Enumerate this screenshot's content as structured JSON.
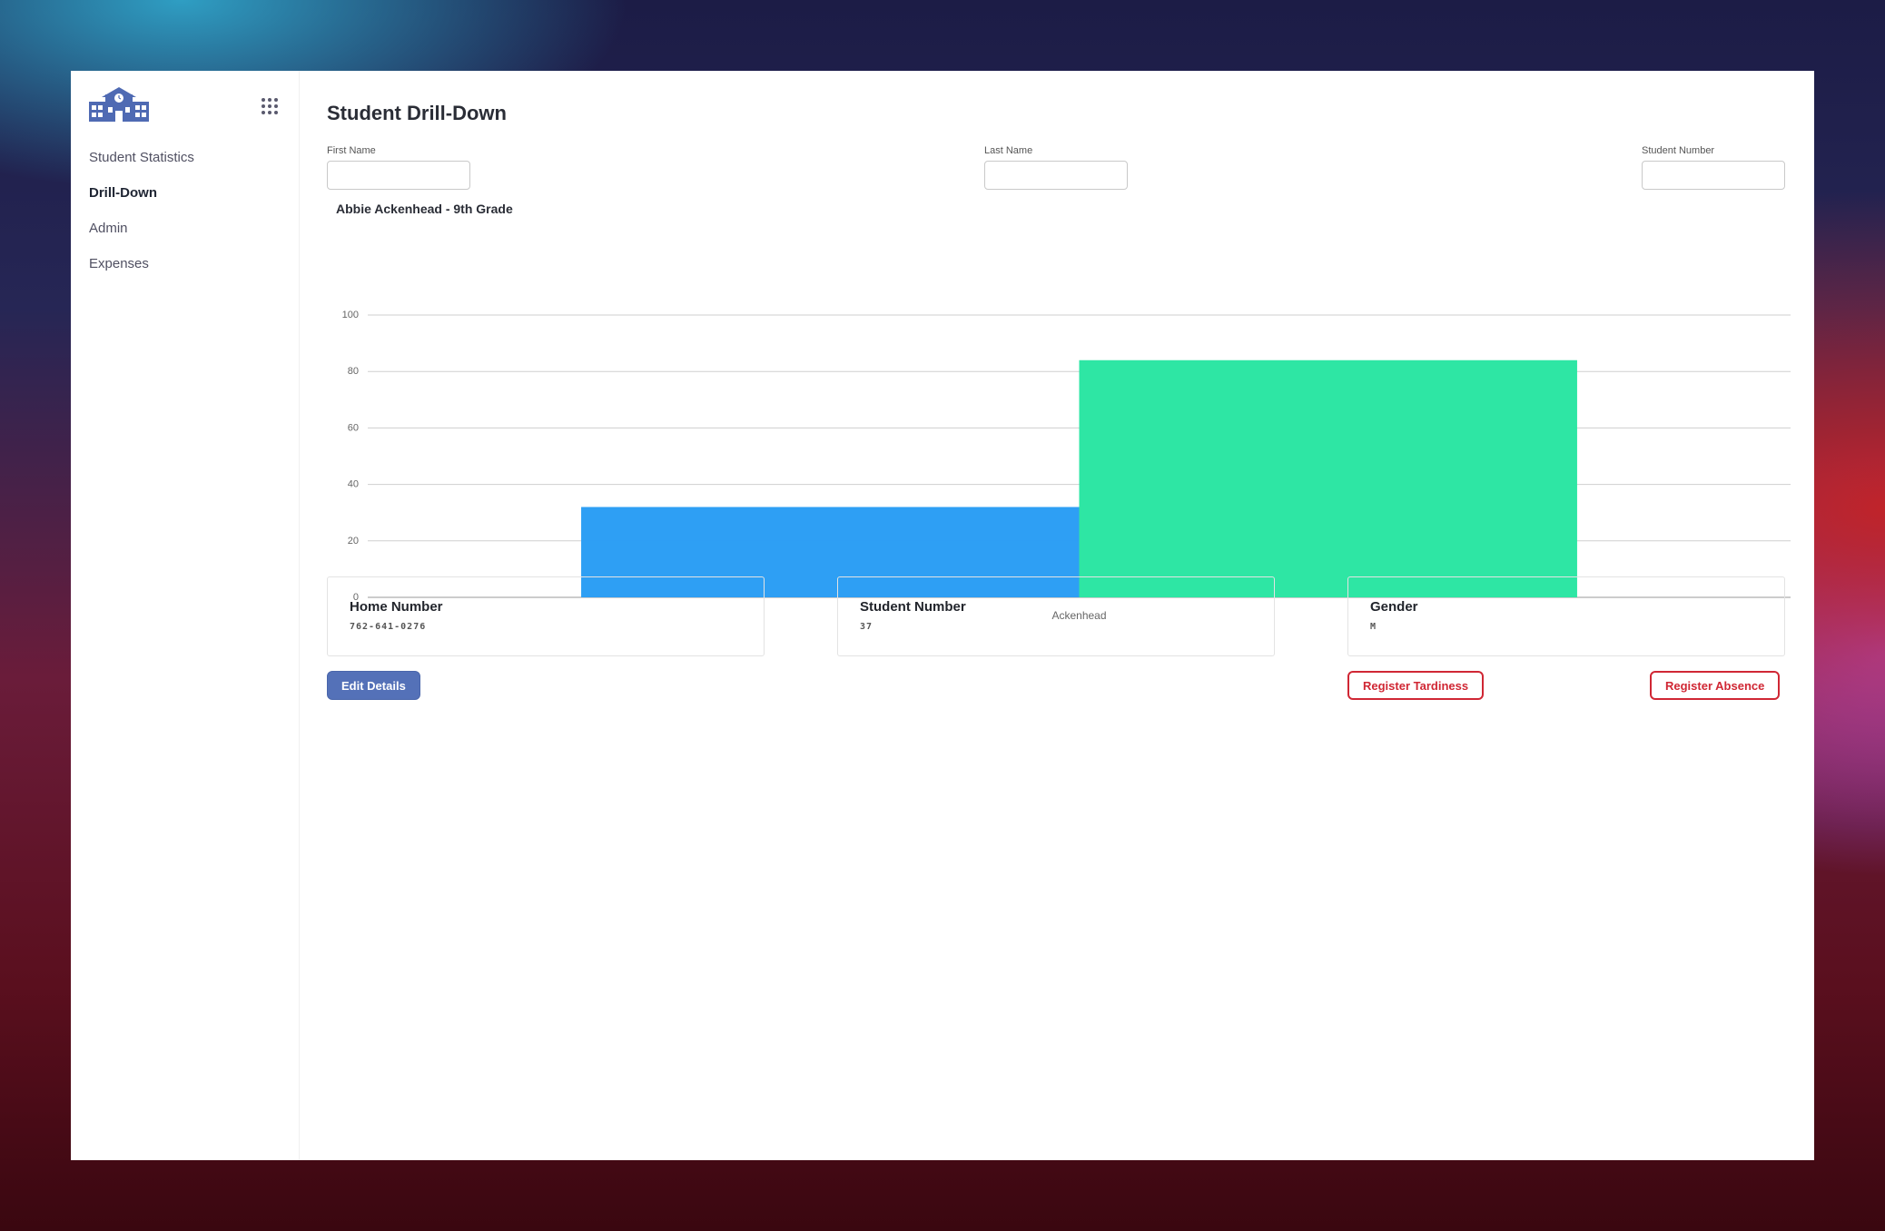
{
  "sidebar": {
    "logo_icon": "school-building-icon",
    "apps_icon": "apps-grid-icon",
    "items": [
      {
        "label": "Student Statistics",
        "active": false
      },
      {
        "label": "Drill-Down",
        "active": true
      },
      {
        "label": "Admin",
        "active": false
      },
      {
        "label": "Expenses",
        "active": false
      }
    ]
  },
  "main": {
    "title": "Student Drill-Down",
    "filters": {
      "first_name": {
        "label": "First Name",
        "value": ""
      },
      "last_name": {
        "label": "Last Name",
        "value": ""
      },
      "student_number": {
        "label": "Student Number",
        "value": ""
      }
    },
    "cards": {
      "home_number": {
        "label": "Home Number",
        "value": "762-641-0276"
      },
      "student_number": {
        "label": "Student Number",
        "value": "37"
      },
      "gender": {
        "label": "Gender",
        "value": "M"
      }
    },
    "buttons": {
      "edit": "Edit Details",
      "tardiness": "Register Tardiness",
      "absence": "Register Absence"
    }
  },
  "colors": {
    "accent": "#5471b8",
    "danger": "#d02734",
    "series_1": "#2a9df4",
    "series_2": "#2ae6a2"
  },
  "chart_data": {
    "type": "bar",
    "title": "Abbie Ackenhead - 9th Grade",
    "categories": [
      "Ackenhead"
    ],
    "series": [
      {
        "values": [
          32
        ]
      },
      {
        "values": [
          84
        ]
      }
    ],
    "ylim": [
      0,
      100
    ],
    "yticks": [
      0,
      20,
      40,
      60,
      80,
      100
    ],
    "grid": true
  }
}
